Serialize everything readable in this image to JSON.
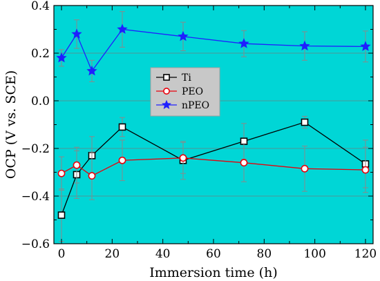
{
  "chart_data": {
    "type": "line",
    "title": "",
    "xlabel": "Immersion time (h)",
    "ylabel": "OCP (V vs. SCE)",
    "xlim": [
      -3,
      123
    ],
    "ylim": [
      -0.6,
      0.4
    ],
    "xticks": [
      0,
      20,
      40,
      60,
      80,
      100,
      120
    ],
    "yticks": [
      -0.6,
      -0.4,
      -0.2,
      0.0,
      0.2,
      0.4
    ],
    "xtick_labels": [
      "0",
      "20",
      "40",
      "60",
      "80",
      "100",
      "120"
    ],
    "ytick_labels": [
      "−0.6",
      "−0.4",
      "−0.2",
      "0.0",
      "0.2",
      "0.4"
    ],
    "grid": "horizontal",
    "background_color": "#00d6d6",
    "legend_position": "upper-middle",
    "series": [
      {
        "name": "Ti",
        "color": "#000000",
        "marker": "square",
        "x": [
          0,
          6,
          12,
          24,
          48,
          72,
          96,
          120
        ],
        "y": [
          -0.48,
          -0.31,
          -0.23,
          -0.11,
          -0.25,
          -0.17,
          -0.09,
          -0.265
        ],
        "err": [
          0.11,
          0.1,
          0.08,
          0.04,
          0.08,
          0.075,
          0.025,
          0.1
        ]
      },
      {
        "name": "PEO",
        "color": "#e8000b",
        "marker": "circle",
        "x": [
          0,
          6,
          12,
          24,
          48,
          72,
          96,
          120
        ],
        "y": [
          -0.305,
          -0.27,
          -0.315,
          -0.25,
          -0.24,
          -0.26,
          -0.285,
          -0.29
        ],
        "err": [
          0.07,
          0.075,
          0.1,
          0.085,
          0.065,
          0.08,
          0.095,
          0.095
        ]
      },
      {
        "name": "nPEO",
        "color": "#1f1fff",
        "marker": "star",
        "x": [
          0,
          6,
          12,
          24,
          48,
          72,
          96,
          120
        ],
        "y": [
          0.18,
          0.28,
          0.125,
          0.3,
          0.27,
          0.24,
          0.23,
          0.228
        ],
        "err": [
          0.035,
          0.06,
          0.045,
          0.075,
          0.06,
          0.055,
          0.06,
          0.065
        ]
      }
    ]
  }
}
